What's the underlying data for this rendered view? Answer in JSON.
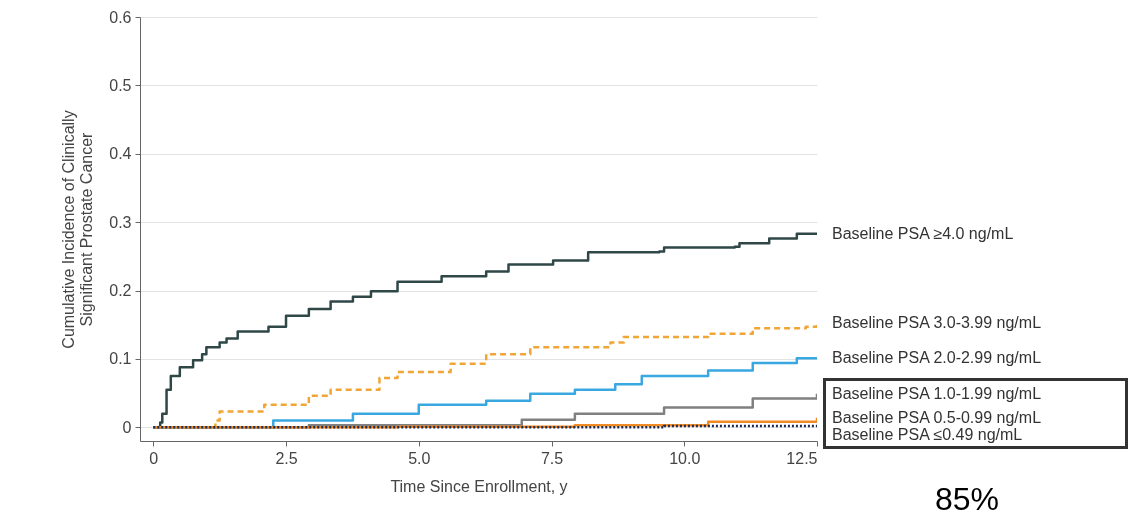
{
  "chart_data": {
    "type": "step",
    "xlabel": "Time Since Enrollment, y",
    "ylabel": "Cumulative Incidence of Clinically\nSignificant Prostate Cancer",
    "xlim": [
      -0.25,
      12.5
    ],
    "xticks": [
      0,
      2.5,
      {
        "value": 5,
        "label": "5.0"
      },
      7.5,
      {
        "value": 10,
        "label": "10.0"
      },
      12.5
    ],
    "ylim": [
      -0.02,
      0.6
    ],
    "yticks": [
      0,
      0.1,
      0.2,
      0.3,
      0.4,
      0.5,
      0.6
    ],
    "grid": "y",
    "annotations": [
      "85%"
    ],
    "series": [
      {
        "name": "Baseline PSA ≥4.0 ng/mL",
        "color": "#2f4747",
        "line_style": "solid",
        "x": [
          0,
          0.13,
          0.17,
          0.25,
          0.33,
          0.5,
          0.75,
          0.92,
          1.0,
          1.25,
          1.38,
          1.59,
          2.17,
          2.5,
          2.93,
          3.34,
          3.76,
          4.1,
          4.6,
          5.43,
          6.27,
          6.69,
          7.53,
          8.19,
          9.53,
          9.62,
          10.95,
          11.04,
          11.6,
          12.12,
          12.5
        ],
        "values": [
          0,
          0.007,
          0.02,
          0.055,
          0.075,
          0.088,
          0.098,
          0.107,
          0.117,
          0.124,
          0.13,
          0.14,
          0.147,
          0.163,
          0.173,
          0.184,
          0.191,
          0.199,
          0.213,
          0.221,
          0.228,
          0.238,
          0.244,
          0.256,
          0.257,
          0.263,
          0.264,
          0.269,
          0.276,
          0.283,
          0.283
        ]
      },
      {
        "name": "Baseline PSA 3.0-3.99 ng/mL",
        "color": "#f0a535",
        "line_style": "dashed",
        "x": [
          0,
          1.17,
          1.25,
          2.09,
          2.93,
          3.34,
          4.26,
          4.6,
          5.6,
          6.27,
          7.1,
          8.61,
          8.86,
          10.45,
          11.29,
          12.29,
          12.5
        ],
        "values": [
          0,
          0.01,
          0.023,
          0.033,
          0.046,
          0.055,
          0.072,
          0.081,
          0.093,
          0.107,
          0.117,
          0.124,
          0.132,
          0.137,
          0.145,
          0.147,
          0.153
        ]
      },
      {
        "name": "Baseline PSA 2.0-2.99 ng/mL",
        "color": "#3aa8e0",
        "line_style": "solid",
        "x": [
          0,
          2.26,
          3.76,
          5.0,
          6.27,
          7.1,
          7.94,
          8.7,
          9.2,
          10.45,
          11.29,
          12.12,
          12.5
        ],
        "values": [
          0,
          0.01,
          0.02,
          0.033,
          0.039,
          0.049,
          0.055,
          0.063,
          0.075,
          0.083,
          0.094,
          0.101,
          0.102
        ]
      },
      {
        "name": "Baseline PSA 1.0-1.99 ng/mL",
        "color": "#808080",
        "line_style": "solid",
        "x": [
          0,
          2.93,
          6.94,
          7.94,
          9.62,
          11.29,
          12.5
        ],
        "values": [
          0,
          0.003,
          0.011,
          0.02,
          0.029,
          0.042,
          0.049
        ]
      },
      {
        "name": "Baseline PSA 0.5-0.99 ng/mL",
        "color": "#f08a24",
        "line_style": "solid",
        "x": [
          0,
          4.6,
          7.94,
          10.45,
          12.5
        ],
        "values": [
          0,
          0.001,
          0.003,
          0.008,
          0.014
        ]
      },
      {
        "name": "Baseline PSA ≤0.49 ng/mL",
        "color": "#1c2b52",
        "line_style": "dotted",
        "x": [
          0,
          9.62,
          12.5
        ],
        "values": [
          0,
          0.002,
          0.003
        ]
      }
    ]
  }
}
